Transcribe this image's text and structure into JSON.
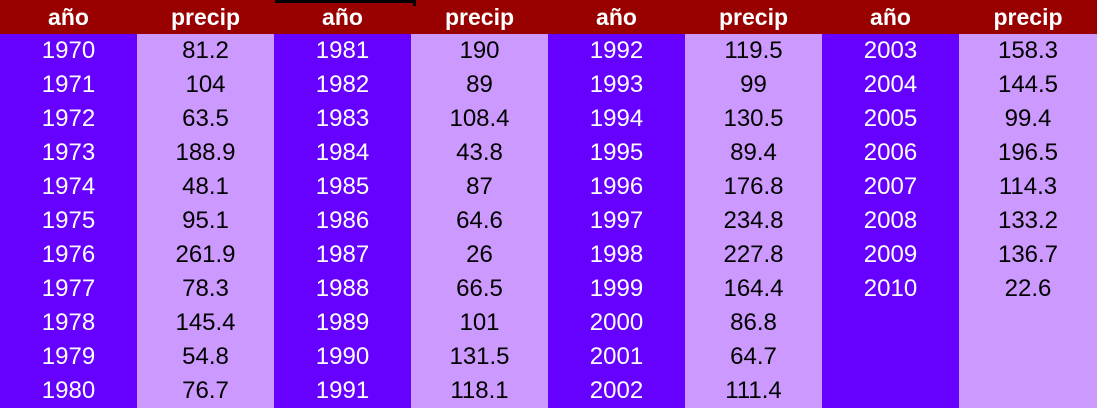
{
  "headers": [
    "año",
    "precip",
    "año",
    "precip",
    "año",
    "precip",
    "año",
    "precip"
  ],
  "rows": [
    [
      "1970",
      "81.2",
      "1981",
      "190",
      "1992",
      "119.5",
      "2003",
      "158.3"
    ],
    [
      "1971",
      "104",
      "1982",
      "89",
      "1993",
      "99",
      "2004",
      "144.5"
    ],
    [
      "1972",
      "63.5",
      "1983",
      "108.4",
      "1994",
      "130.5",
      "2005",
      "99.4"
    ],
    [
      "1973",
      "188.9",
      "1984",
      "43.8",
      "1995",
      "89.4",
      "2006",
      "196.5"
    ],
    [
      "1974",
      "48.1",
      "1985",
      "87",
      "1996",
      "176.8",
      "2007",
      "114.3"
    ],
    [
      "1975",
      "95.1",
      "1986",
      "64.6",
      "1997",
      "234.8",
      "2008",
      "133.2"
    ],
    [
      "1976",
      "261.9",
      "1987",
      "26",
      "1998",
      "227.8",
      "2009",
      "136.7"
    ],
    [
      "1977",
      "78.3",
      "1988",
      "66.5",
      "1999",
      "164.4",
      "2010",
      "22.6"
    ],
    [
      "1978",
      "145.4",
      "1989",
      "101",
      "2000",
      "86.8",
      "",
      ""
    ],
    [
      "1979",
      "54.8",
      "1990",
      "131.5",
      "2001",
      "64.7",
      "",
      ""
    ],
    [
      "1980",
      "76.7",
      "1991",
      "118.1",
      "2002",
      "111.4",
      "",
      ""
    ]
  ],
  "colors": {
    "header_bg": "#990000",
    "year_bg": "#6600ff",
    "precip_bg": "#cc99ff"
  }
}
